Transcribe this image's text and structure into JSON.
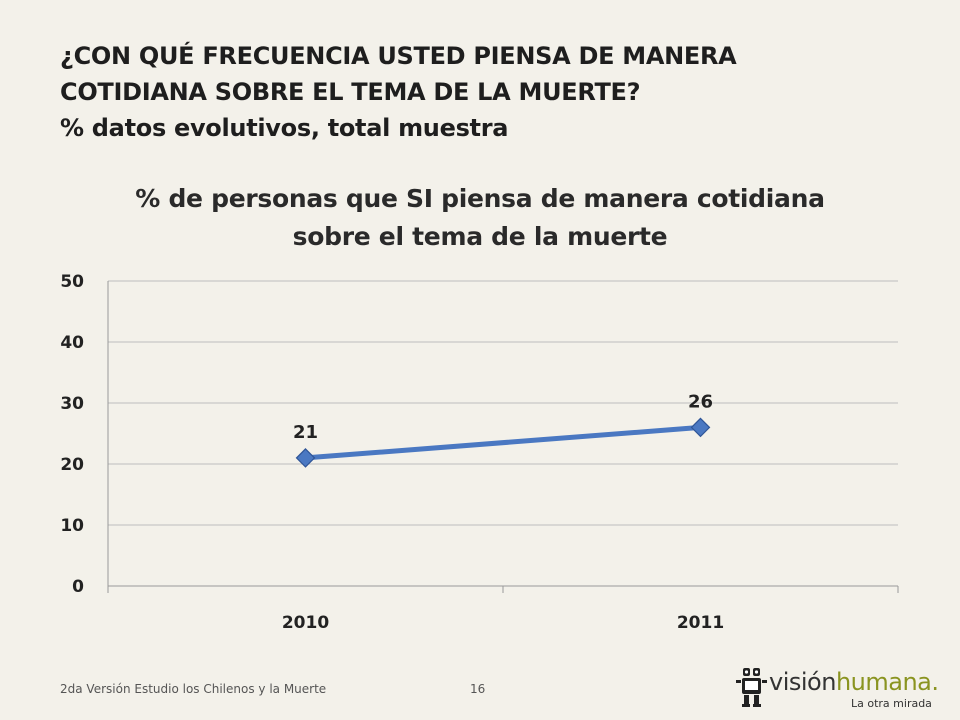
{
  "slide": {
    "title_line1": "¿CON QUÉ FRECUENCIA USTED PIENSA DE MANERA",
    "title_line2": "COTIDIANA SOBRE EL TEMA DE LA MUERTE?",
    "subtitle": "% datos evolutivos, total muestra"
  },
  "chart_data": {
    "type": "line",
    "title_line1": "% de personas que SI piensa de manera cotidiana",
    "title_line2": "sobre el tema de la muerte",
    "categories": [
      "2010",
      "2011"
    ],
    "series": [
      {
        "values": [
          21,
          26
        ],
        "color": "#4a78c2"
      }
    ],
    "data_labels": [
      "21",
      "26"
    ],
    "ylim": [
      0,
      50
    ],
    "yticks": [
      0,
      10,
      20,
      30,
      40,
      50
    ],
    "ytick_labels": [
      "0",
      "10",
      "20",
      "30",
      "40",
      "50"
    ],
    "grid": true,
    "legend": "none"
  },
  "footer": {
    "text": "2da Versión Estudio los Chilenos y la Muerte",
    "page_number": "16"
  },
  "logo": {
    "part_a": "visión",
    "part_b": "humana",
    "dot": ".",
    "tagline": "La otra mirada"
  }
}
